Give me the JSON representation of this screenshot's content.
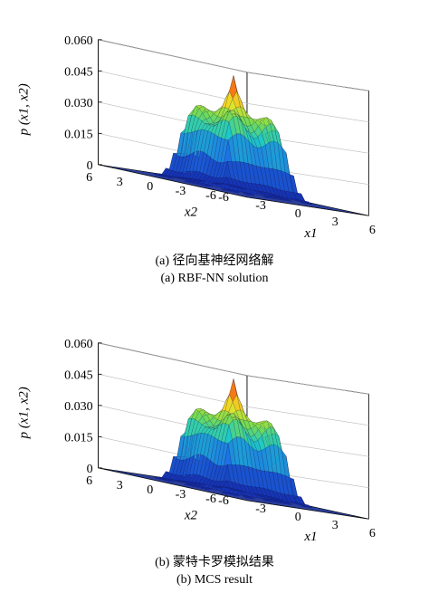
{
  "colors": {
    "floor": "#2b3f9c",
    "low": "#2a47c8",
    "mid": "#1fb8b0",
    "high": "#d71f16",
    "wire": "#10123a"
  },
  "panels": [
    {
      "caption_cn": "(a) 径向基神经网络解",
      "caption_en": "(a) RBF-NN solution"
    },
    {
      "caption_cn": "(b) 蒙特卡罗模拟结果",
      "caption_en": "(b) MCS result"
    }
  ],
  "chart_data": [
    {
      "type": "surface",
      "zlabel": "p (x1, x2)",
      "xlabel": "x1",
      "ylabel": "x2",
      "x_ticks": [
        "-6",
        "-3",
        "0",
        "3",
        "6"
      ],
      "y_ticks": [
        "6",
        "3",
        "0",
        "-3",
        "-6"
      ],
      "z_ticks": [
        "0",
        "0.015",
        "0.030",
        "0.045",
        "0.060"
      ],
      "xlim": [
        -6,
        6
      ],
      "ylim": [
        -6,
        6
      ],
      "zlim": [
        0,
        0.06
      ],
      "grid": true,
      "peak": {
        "x1": 0,
        "x2": 0,
        "p": 0.055
      },
      "plateau_level": 0.045,
      "support": "non-zero on about -3 <= x1 <= 3, -3 <= x2 <= 3; zero elsewhere"
    },
    {
      "type": "surface",
      "zlabel": "p (x1, x2)",
      "xlabel": "x1",
      "ylabel": "x2",
      "x_ticks": [
        "-6",
        "-3",
        "0",
        "3",
        "6"
      ],
      "y_ticks": [
        "6",
        "3",
        "0",
        "-3",
        "-6"
      ],
      "z_ticks": [
        "0",
        "0.015",
        "0.030",
        "0.045",
        "0.060"
      ],
      "xlim": [
        -6,
        6
      ],
      "ylim": [
        -6,
        6
      ],
      "zlim": [
        0,
        0.06
      ],
      "grid": true,
      "peak": {
        "x1": 0,
        "x2": 0,
        "p": 0.055
      },
      "plateau_level": 0.045,
      "support": "non-zero on about -3 <= x1 <= 3, -3 <= x2 <= 3; zero elsewhere"
    }
  ]
}
